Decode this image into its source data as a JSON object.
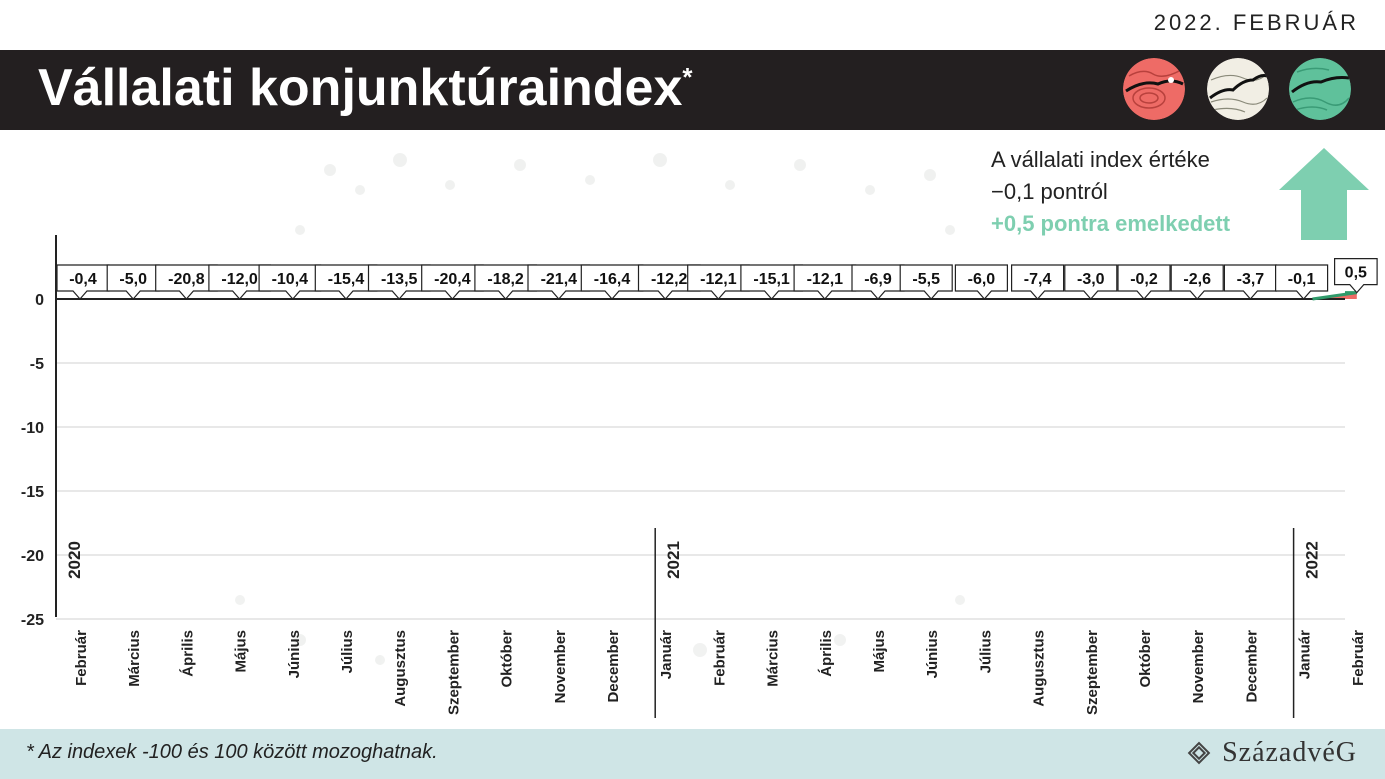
{
  "header": {
    "date": "2022. FEBRUÁR",
    "title": "Vállalati konjunktúraindex",
    "title_mark": "*"
  },
  "info": {
    "line1": "A vállalati index értéke",
    "line2": "−0,1 pontról",
    "line3": "+0,5 pontra emelkedett"
  },
  "colors": {
    "area": "#ee6b66",
    "accent": "#7ecfb0",
    "title_bar": "#231f20",
    "footer": "#cfe5e6"
  },
  "chart_data": {
    "type": "area",
    "x": [
      "Február",
      "Március",
      "Április",
      "Május",
      "Június",
      "Július",
      "Augusztus",
      "Szeptember",
      "Október",
      "November",
      "December",
      "Január",
      "Február",
      "Március",
      "Április",
      "Május",
      "Június",
      "Július",
      "Augusztus",
      "Szeptember",
      "Október",
      "November",
      "December",
      "Január",
      "Február"
    ],
    "values": [
      -0.4,
      -5.0,
      -20.8,
      -12.0,
      -10.4,
      -15.4,
      -13.5,
      -20.4,
      -18.2,
      -21.4,
      -16.4,
      -12.2,
      -12.1,
      -15.1,
      -12.1,
      -6.9,
      -5.5,
      -6.0,
      -7.4,
      -3.0,
      -0.2,
      -2.6,
      -3.7,
      -0.1,
      0.5
    ],
    "value_labels": [
      "-0,4",
      "-5,0",
      "-20,8",
      "-12,0",
      "-10,4",
      "-15,4",
      "-13,5",
      "-20,4",
      "-18,2",
      "-21,4",
      "-16,4",
      "-12,2",
      "-12,1",
      "-15,1",
      "-12,1",
      "-6,9",
      "-5,5",
      "-6,0",
      "-7,4",
      "-3,0",
      "-0,2",
      "-2,6",
      "-3,7",
      "-0,1",
      "0,5"
    ],
    "y_ticks": [
      "0",
      "-5",
      "-10",
      "-15",
      "-20",
      "-25"
    ],
    "ylim": [
      -25,
      0
    ],
    "years": [
      {
        "label": "2020",
        "start_index": 0
      },
      {
        "label": "2021",
        "start_index": 11
      },
      {
        "label": "2022",
        "start_index": 23
      }
    ],
    "grid": true
  },
  "footer": {
    "note": "* Az indexek -100 és 100 között mozoghatnak.",
    "brand": "SzázadvéG"
  }
}
